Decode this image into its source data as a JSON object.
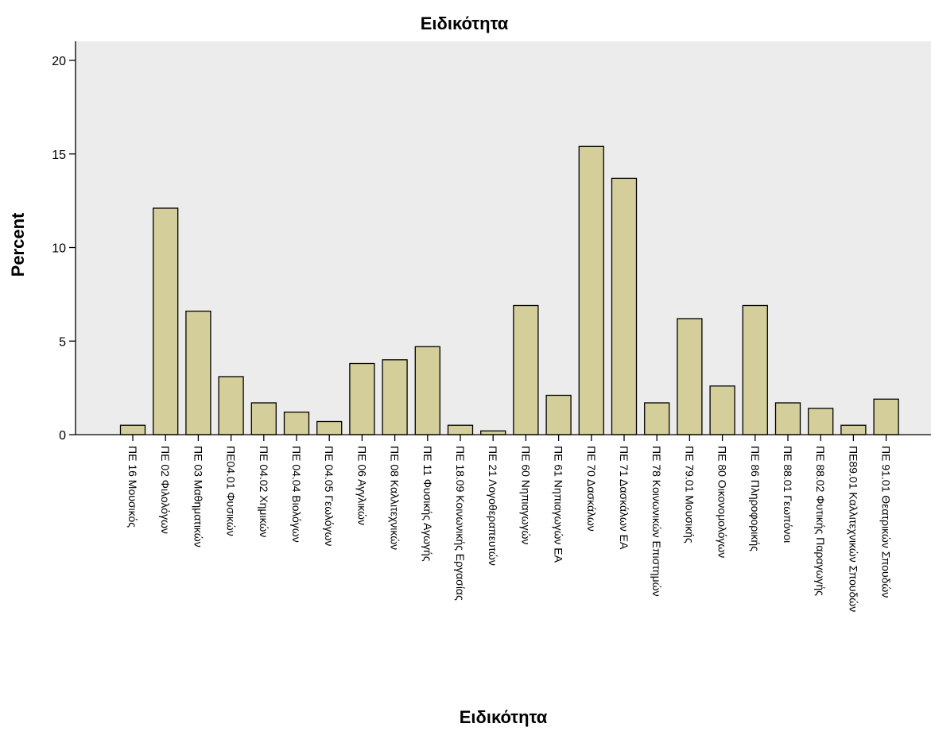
{
  "chart_data": {
    "type": "bar",
    "title": "Ειδικότητα",
    "xlabel": "Ειδικότητα",
    "ylabel": "Percent",
    "ylim": [
      0,
      20
    ],
    "yticks": [
      0,
      5,
      10,
      15,
      20
    ],
    "grid": false,
    "colors": {
      "plot_background": "#ececec",
      "bar_fill": "#d4cf9a",
      "bar_stroke": "#000000",
      "axis": "#000000"
    },
    "categories": [
      "ΠΕ 16 Μουσικός",
      "ΠΕ 02 Φιλολόγων",
      "ΠΕ 03 Μαθηματικών",
      "ΠΕ04.01 Φυσικών",
      "ΠΕ 04.02 Χημικών",
      "ΠΕ 04.04 Βιολόγων",
      "ΠΕ 04.05 Γεωλόγων",
      "ΠΕ 06 Αγγλικών",
      "ΠΕ 08 Καλλιτεχνικών",
      "ΠΕ 11 Φυσικής Αγωγής",
      "ΠΕ 18.09 Κοινωνικής Εργασίας",
      "ΠΕ 21 Λογοθεραπευτών",
      "ΠΕ 60 Νηπιαγωγών",
      "ΠΕ 61 Νηπιαγωγών ΕΑ",
      "ΠΕ 70 Δασκάλων",
      "ΠΕ 71 Δασκάλων ΕΑ",
      "ΠΕ 78 Κοινωνικών Επιστημών",
      "ΠΕ 79.01 Μουσικής",
      "ΠΕ 80 Οικονομολόγων",
      "ΠΕ 86 Πληροφορικής",
      "ΠΕ 88.01 Γεωπόνοι",
      "ΠΕ 88.02 Φυτικής Παραγωγής",
      "ΠΕ89.01 Καλλιτεχνικών Σπουδών",
      "ΠΕ 91.01 Θεατρικών Σπουδών"
    ],
    "values": [
      0.5,
      12.1,
      6.6,
      3.1,
      1.7,
      1.2,
      0.7,
      3.8,
      4.0,
      4.7,
      0.5,
      0.2,
      6.9,
      2.1,
      15.4,
      13.7,
      1.7,
      6.2,
      2.6,
      6.9,
      1.7,
      1.4,
      0.5,
      1.9
    ]
  }
}
